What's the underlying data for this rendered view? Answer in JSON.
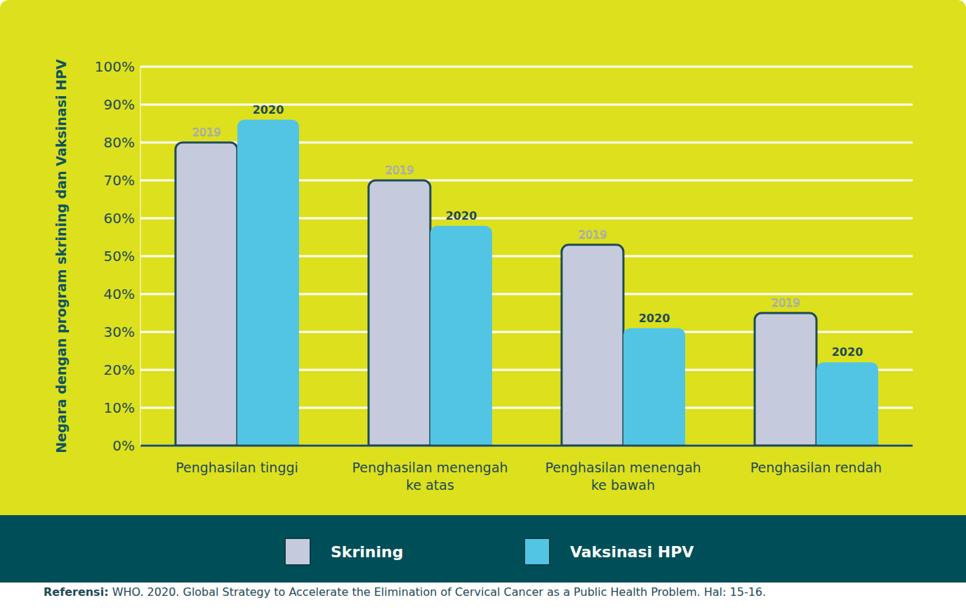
{
  "chart_data": {
    "type": "bar",
    "categories": [
      "Penghasilan tinggi",
      "Penghasilan menengah ke atas",
      "Penghasilan menengah ke bawah",
      "Penghasilan rendah"
    ],
    "series": [
      {
        "name": "Skrining",
        "color": "#c5cbdc",
        "values": [
          80,
          70,
          53,
          35
        ]
      },
      {
        "name": "Vaksinasi HPV",
        "color": "#52c5e5",
        "values": [
          86,
          58,
          31,
          22
        ]
      }
    ],
    "y_label": "Negara dengan program skrining dan Vaksinasi HPV",
    "ylim": [
      0,
      100
    ],
    "yticks": [
      {
        "value": 0,
        "label": "0%"
      },
      {
        "value": 10,
        "label": "10%"
      },
      {
        "value": 20,
        "label": "20%"
      },
      {
        "value": 30,
        "label": "30%"
      },
      {
        "value": 40,
        "label": "40%"
      },
      {
        "value": 50,
        "label": "50%"
      },
      {
        "value": 60,
        "label": "60%"
      },
      {
        "value": 70,
        "label": "70%"
      },
      {
        "value": 80,
        "label": "80%"
      },
      {
        "value": 90,
        "label": "90%"
      },
      {
        "value": 100,
        "label": "100%"
      }
    ],
    "grid": true,
    "legend": "bottom",
    "annotations": [
      {
        "series": "Skrining",
        "text": "2019"
      },
      {
        "series": "Vaksinasi HPV",
        "text": "2020"
      }
    ],
    "source_label": "Referensi:",
    "source": "WHO. 2020. Global Strategy to Accelerate the Elimination of Cervical Cancer as a Public Health Problem. Hal: 15-16."
  }
}
